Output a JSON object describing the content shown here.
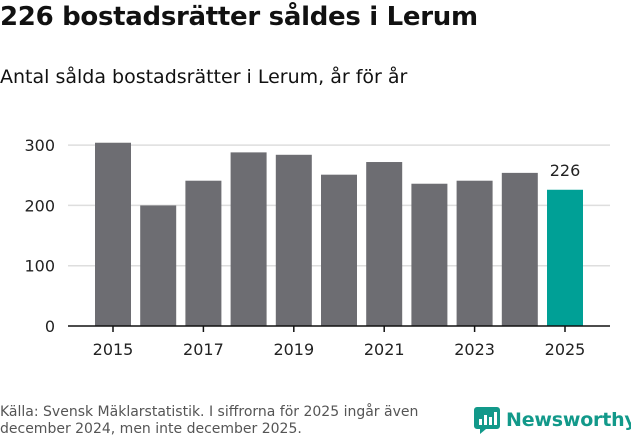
{
  "title": "226 bostadsrätter såldes i Lerum",
  "subtitle": "Antal sålda bostadsrätter i Lerum, år för år",
  "source": "Källa: Svensk Mäklarstatistik. I siffrorna för 2025 ingår även december 2024, men inte december 2025.",
  "brand": {
    "name": "Newsworthy",
    "icon": "newsworthy-logo-icon",
    "color": "#12998a"
  },
  "colors": {
    "bar": "#6d6d72",
    "highlight": "#00a096",
    "grid": "#dedede",
    "axis": "#111111"
  },
  "chart_data": {
    "type": "bar",
    "categories": [
      "2015",
      "2016",
      "2017",
      "2018",
      "2019",
      "2020",
      "2021",
      "2022",
      "2023",
      "2024",
      "2025"
    ],
    "values": [
      304,
      200,
      241,
      288,
      284,
      251,
      272,
      236,
      241,
      254,
      226
    ],
    "highlight_index": 10,
    "value_labels": {
      "10": "226"
    },
    "xticks": [
      "2015",
      "2017",
      "2019",
      "2021",
      "2023",
      "2025"
    ],
    "yticks": [
      0,
      100,
      200,
      300
    ],
    "ylim": [
      0,
      350
    ],
    "grid": true,
    "xlabel": "",
    "ylabel": ""
  }
}
